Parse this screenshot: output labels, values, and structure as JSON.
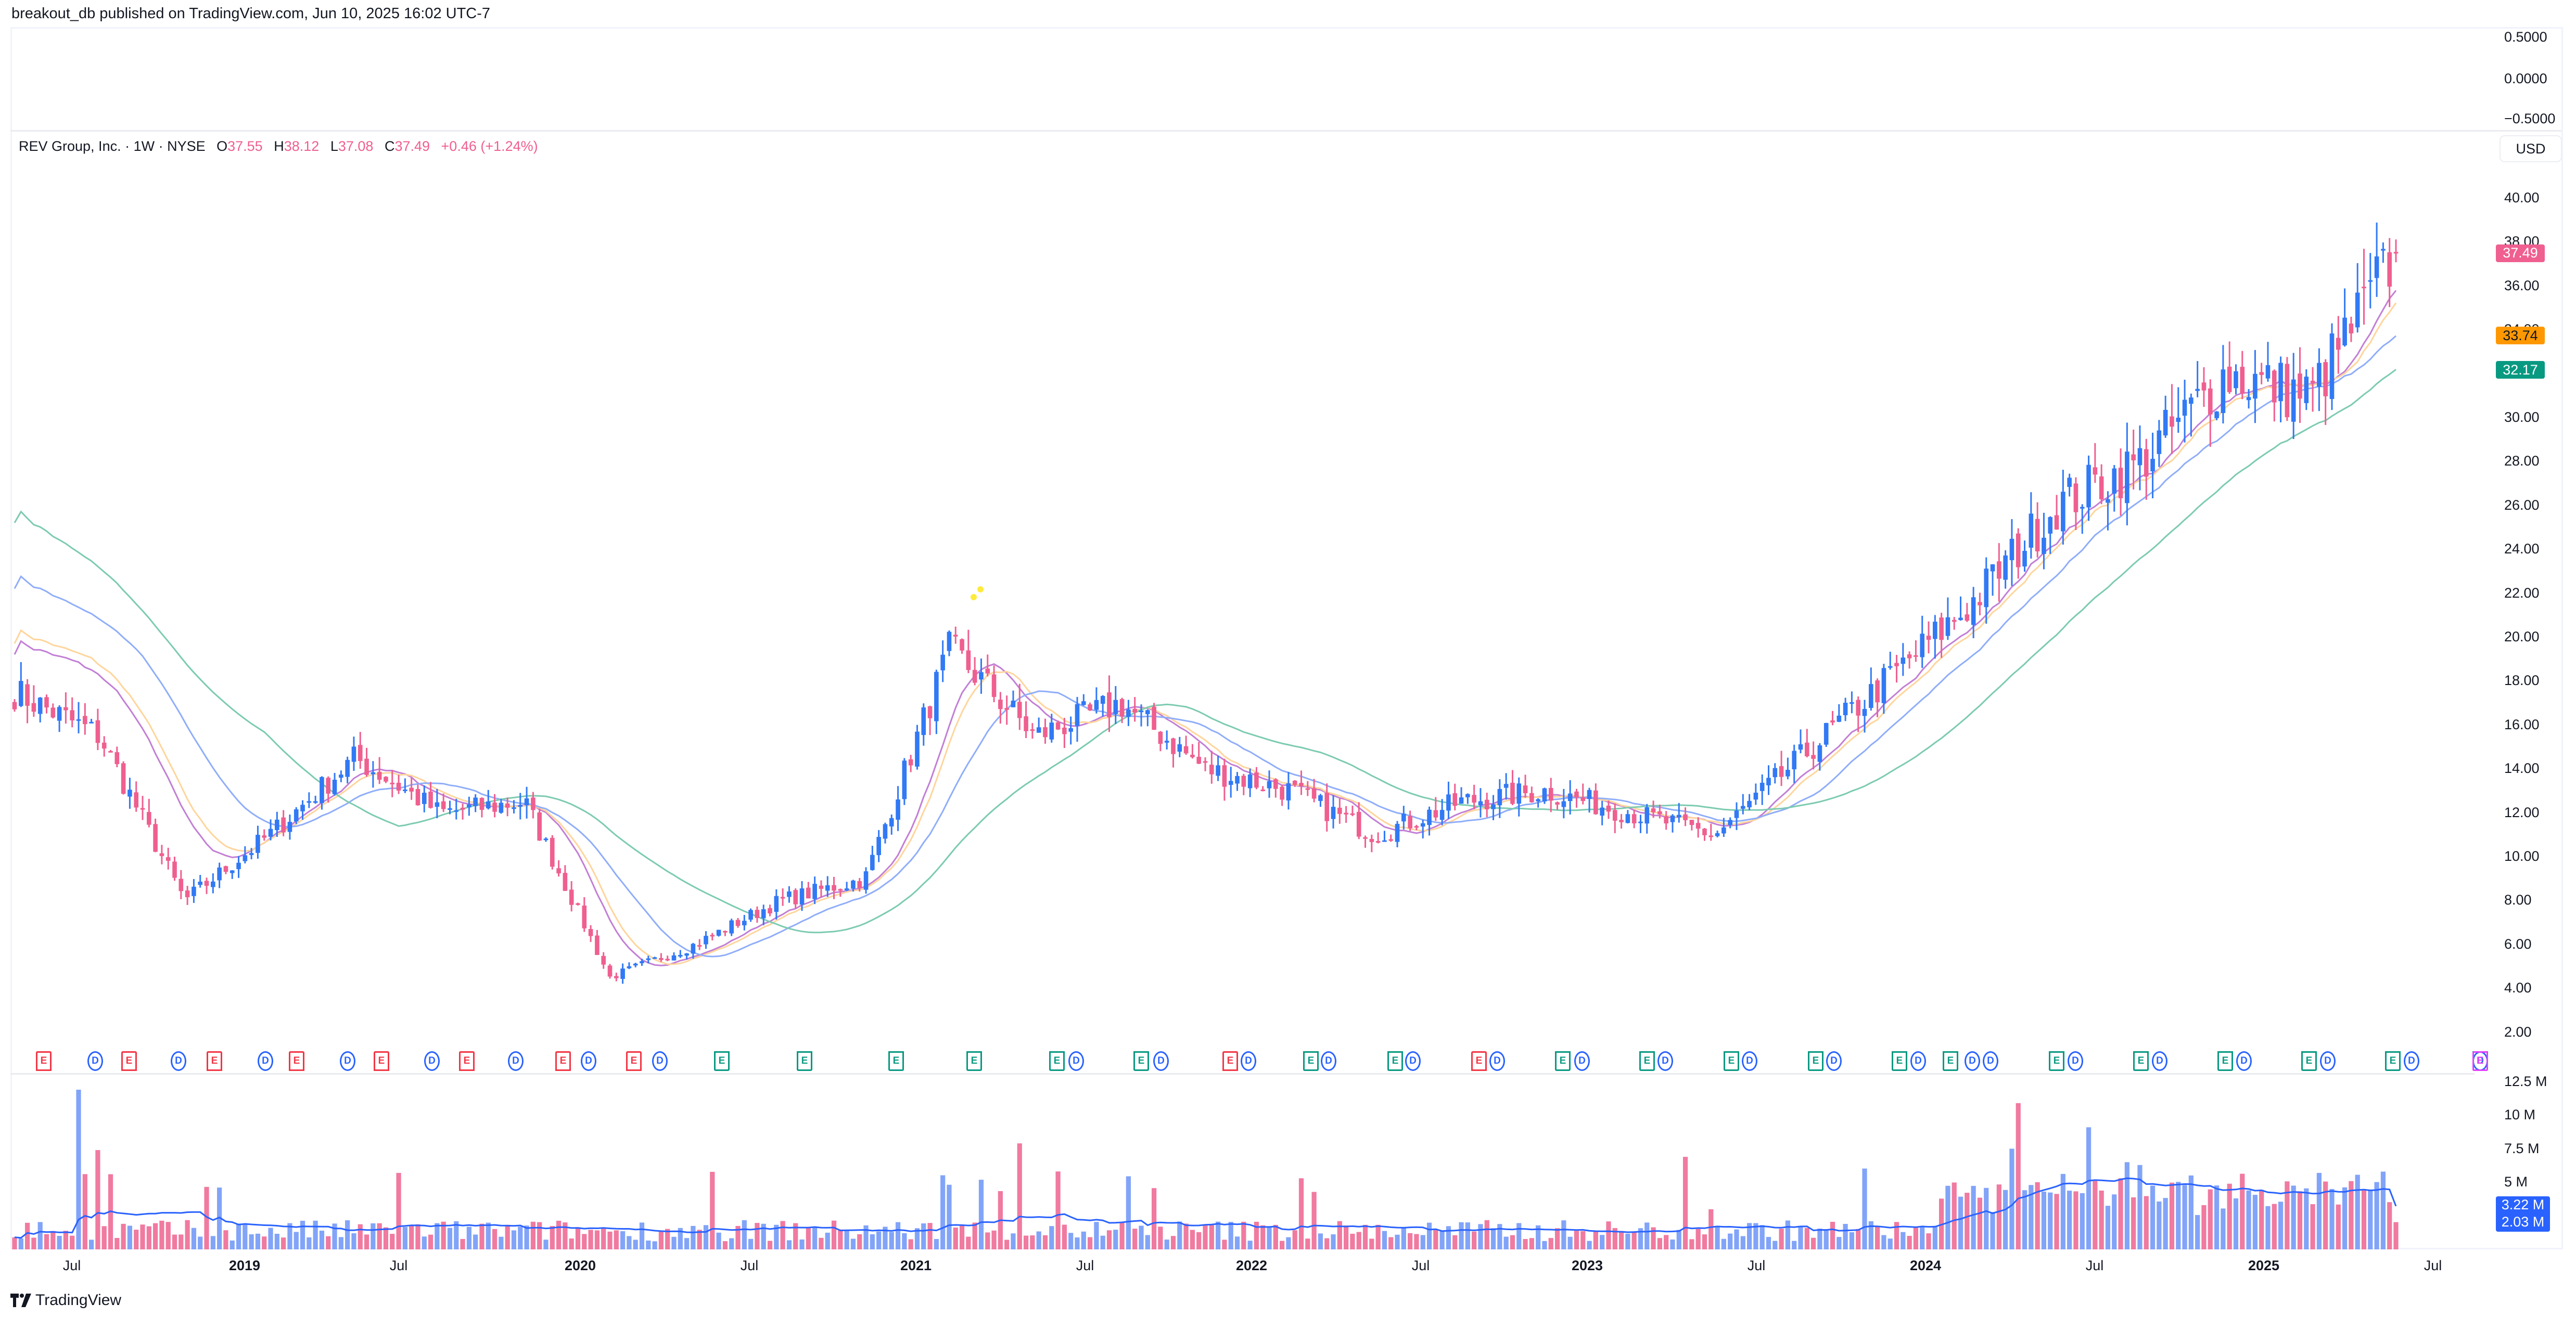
{
  "header": {
    "text": "breakout_db published on TradingView.com, Jun 10, 2025 16:02 UTC-7"
  },
  "legend": {
    "symbol": "REV Group, Inc. · 1W · NYSE",
    "open_label": "O",
    "open": "37.55",
    "high_label": "H",
    "high": "38.12",
    "low_label": "L",
    "low": "37.08",
    "close_label": "C",
    "close": "37.49",
    "change": "+0.46 (+1.24%)"
  },
  "currency": "USD",
  "top_pane": {
    "labels": [
      "0.5000",
      "0.0000",
      "−0.5000"
    ]
  },
  "price_axis": {
    "labels": [
      "40.00",
      "38.00",
      "36.00",
      "34.00",
      "32.00",
      "30.00",
      "28.00",
      "26.00",
      "24.00",
      "22.00",
      "20.00",
      "18.00",
      "16.00",
      "14.00",
      "12.00",
      "10.00",
      "8.00",
      "6.00",
      "4.00",
      "2.00"
    ],
    "tags": [
      {
        "value": "37.49",
        "bg": "#ef5f8f",
        "fg": "#ffffff"
      },
      {
        "value": "33.74",
        "bg": "#ff9800",
        "fg": "#131722"
      },
      {
        "value": "32.17",
        "bg": "#089981",
        "fg": "#ffffff"
      }
    ]
  },
  "volume_axis": {
    "labels": [
      "12.5 M",
      "10 M",
      "7.5 M",
      "5 M"
    ],
    "tags": [
      "3.22 M",
      "2.03 M"
    ]
  },
  "time_axis": [
    {
      "label": "Jul",
      "year": false
    },
    {
      "label": "2019",
      "year": true
    },
    {
      "label": "Jul",
      "year": false
    },
    {
      "label": "2020",
      "year": true
    },
    {
      "label": "Jul",
      "year": false
    },
    {
      "label": "2021",
      "year": true
    },
    {
      "label": "Jul",
      "year": false
    },
    {
      "label": "2022",
      "year": true
    },
    {
      "label": "Jul",
      "year": false
    },
    {
      "label": "2023",
      "year": true
    },
    {
      "label": "Jul",
      "year": false
    },
    {
      "label": "2024",
      "year": true
    },
    {
      "label": "Jul",
      "year": false
    },
    {
      "label": "2025",
      "year": true
    },
    {
      "label": "Jul",
      "year": false
    }
  ],
  "events": [
    "E-red",
    "D",
    "E-red",
    "D",
    "E-red",
    "D",
    "E-red",
    "D",
    "E-red",
    "D",
    "E-red",
    "D",
    "E-red",
    "D",
    "E-red",
    "D",
    "E-green",
    "E-green",
    "E-green",
    "E-green",
    "E-green",
    "D",
    "E-green",
    "D",
    "E-red",
    "D",
    "E-green",
    "D",
    "E-green",
    "D",
    "E-red",
    "D",
    "E-green",
    "D",
    "E-green",
    "D",
    "E-green",
    "D",
    "E-green",
    "D",
    "E-green",
    "D",
    "E-green",
    "D",
    "D",
    "E-green",
    "D",
    "E-green",
    "D",
    "E-green",
    "D",
    "E-green",
    "D",
    "E-green",
    "D",
    "E-green",
    "D",
    "E-pink"
  ],
  "logo": {
    "text": "TradingView"
  },
  "colors": {
    "up": "#3179f5",
    "down": "#ef5f8f",
    "vol_up": "#82a4f8",
    "vol_down": "#f07aa0",
    "ma1": "#c27fd6",
    "ma2": "#ffd59c",
    "ma3": "#8fadf9",
    "ma4": "#7ccbb0",
    "vol_ma": "#2962ff"
  },
  "chart_data": {
    "type": "candlestick",
    "title": "REV Group, Inc. · 1W · NYSE",
    "interval": "1W",
    "ylabel": "USD",
    "ylim": [
      2,
      40
    ],
    "x_range": [
      "2018-04",
      "2025-06"
    ],
    "last_bar": {
      "open": 37.55,
      "high": 38.12,
      "low": 37.08,
      "close": 37.49,
      "change": 0.46,
      "change_pct": 1.24
    },
    "moving_averages_last": [
      33.74,
      32.17
    ],
    "approx_closes_by_period": [
      {
        "period": "2018-Q2",
        "close": 17.5
      },
      {
        "period": "2018-Q3",
        "close": 15.5
      },
      {
        "period": "2018-Q4",
        "close": 8.0
      },
      {
        "period": "2019-Q1",
        "close": 11.0
      },
      {
        "period": "2019-Q2",
        "close": 14.5
      },
      {
        "period": "2019-Q3",
        "close": 12.0
      },
      {
        "period": "2019-Q4",
        "close": 12.5
      },
      {
        "period": "2020-Q1",
        "close": 4.5
      },
      {
        "period": "2020-Q2",
        "close": 6.0
      },
      {
        "period": "2020-Q3",
        "close": 8.0
      },
      {
        "period": "2020-Q4",
        "close": 9.0
      },
      {
        "period": "2021-Q1",
        "close": 19.5
      },
      {
        "period": "2021-Q2",
        "close": 15.5
      },
      {
        "period": "2021-Q3",
        "close": 17.0
      },
      {
        "period": "2021-Q4",
        "close": 14.0
      },
      {
        "period": "2022-Q1",
        "close": 13.0
      },
      {
        "period": "2022-Q2",
        "close": 11.0
      },
      {
        "period": "2022-Q3",
        "close": 12.5
      },
      {
        "period": "2022-Q4",
        "close": 13.0
      },
      {
        "period": "2023-Q1",
        "close": 12.0
      },
      {
        "period": "2023-Q2",
        "close": 11.0
      },
      {
        "period": "2023-Q3",
        "close": 14.5
      },
      {
        "period": "2023-Q4",
        "close": 18.0
      },
      {
        "period": "2024-Q1",
        "close": 21.5
      },
      {
        "period": "2024-Q2",
        "close": 26.0
      },
      {
        "period": "2024-Q3",
        "close": 28.0
      },
      {
        "period": "2024-Q4",
        "close": 32.0
      },
      {
        "period": "2025-Q1",
        "close": 31.0
      },
      {
        "period": "2025-Q2",
        "close": 37.49
      }
    ],
    "volume": {
      "ylim_millions": [
        0,
        12.5
      ],
      "ticks": [
        "12.5 M",
        "10 M",
        "7.5 M",
        "5 M"
      ],
      "last_volume_m": 2.03,
      "volume_ma_m": 3.22,
      "peaks_m": [
        {
          "period": "2018-05",
          "value": 11.9
        },
        {
          "period": "2024-02",
          "value": 10.9
        },
        {
          "period": "2024-03",
          "value": 9.1
        }
      ]
    },
    "series": [
      {
        "name": "MA (purple)"
      },
      {
        "name": "MA (orange)",
        "last": 33.74
      },
      {
        "name": "MA (blue)"
      },
      {
        "name": "MA (green)",
        "last": 32.17
      }
    ],
    "grid": false,
    "legend_position": "top-left"
  }
}
